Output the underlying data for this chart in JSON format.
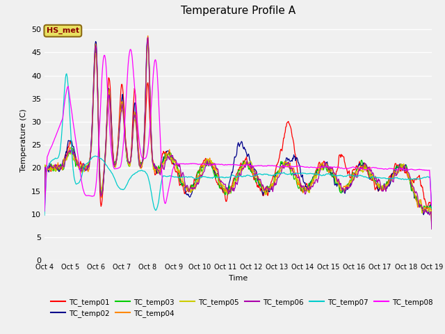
{
  "title": "Temperature Profile A",
  "xlabel": "Time",
  "ylabel": "Temperature (C)",
  "ylim": [
    0,
    52
  ],
  "yticks": [
    0,
    5,
    10,
    15,
    20,
    25,
    30,
    35,
    40,
    45,
    50
  ],
  "fig_facecolor": "#f0f0f0",
  "plot_facecolor": "#f0f0f0",
  "hs_met_label": "HS_met",
  "hs_met_color": "#8B0000",
  "hs_met_bg": "#e8e060",
  "series_colors": {
    "TC_temp01": "#ff0000",
    "TC_temp02": "#00008b",
    "TC_temp03": "#00cc00",
    "TC_temp04": "#ff8800",
    "TC_temp05": "#cccc00",
    "TC_temp06": "#aa00aa",
    "TC_temp07": "#00cccc",
    "TC_temp08": "#ff00ff"
  },
  "n_points": 720,
  "x_days": 15,
  "xtick_start": 4,
  "xtick_end": 19
}
